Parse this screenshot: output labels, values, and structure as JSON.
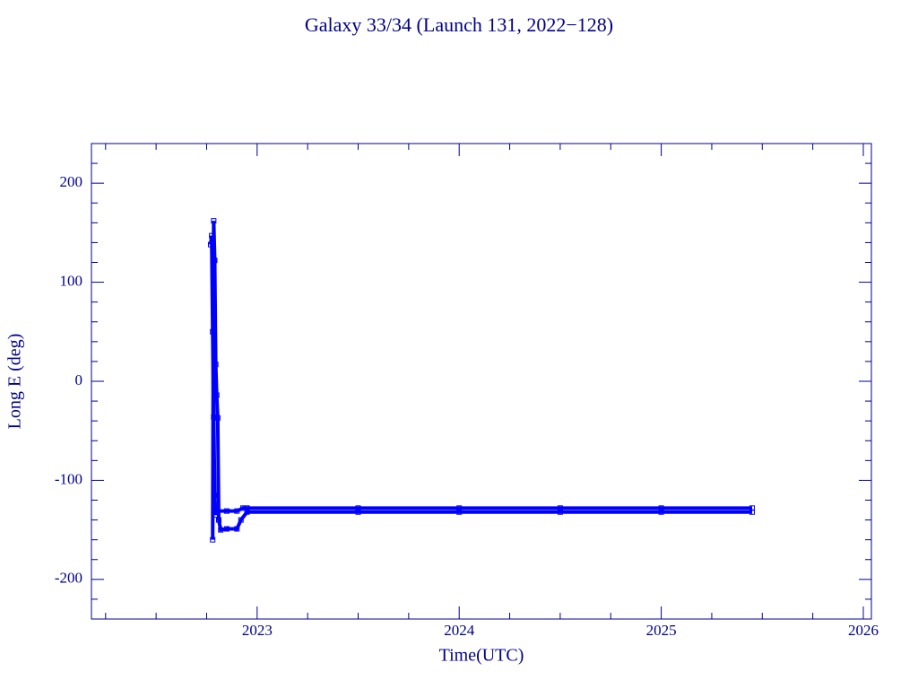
{
  "chart_data": {
    "type": "line",
    "title": "Galaxy 33/34 (Launch 131, 2022−128)",
    "x_label": "Time(UTC)",
    "y_label": "Long E (deg)",
    "xlim": [
      2022.18,
      2026.04
    ],
    "ylim": [
      -240,
      240
    ],
    "xticks": [
      2023,
      2024,
      2025,
      2026
    ],
    "yticks": [
      -200,
      -100,
      0,
      100,
      200
    ],
    "xminorticks": [
      2022.25,
      2022.5,
      2022.75,
      2023.25,
      2023.5,
      2023.75,
      2024.25,
      2024.5,
      2024.75,
      2025.25,
      2025.5,
      2025.75
    ],
    "yminorticks": [
      -220,
      -180,
      -160,
      -140,
      -120,
      -80,
      -60,
      -40,
      -20,
      20,
      40,
      60,
      80,
      120,
      140,
      160,
      180,
      220
    ],
    "axis_color": "#00008b",
    "series": [
      {
        "color": "#0000ff",
        "x": [
          2022.77,
          2022.775,
          2022.78,
          2022.785,
          2022.79,
          2022.795,
          2022.8,
          2022.85,
          2022.9,
          2022.93,
          2022.95,
          2023.5,
          2024.0,
          2024.5,
          2025.0,
          2025.45
        ],
        "values": [
          138,
          147,
          50,
          -36,
          -115,
          -135,
          -131,
          -131,
          -131,
          -128,
          -128,
          -128,
          -128,
          -128,
          -128,
          -128
        ]
      },
      {
        "color": "#0000ff",
        "x": [
          2022.78,
          2022.785,
          2022.79,
          2022.795,
          2022.8,
          2022.805,
          2022.81,
          2022.82,
          2022.85,
          2022.9,
          2022.92,
          2022.95,
          2023.5,
          2024.0,
          2024.5,
          2025.0,
          2025.45
        ],
        "values": [
          -160,
          162,
          122,
          17,
          -14,
          -37,
          -140,
          -150,
          -149,
          -149,
          -140,
          -132,
          -132,
          -132,
          -132,
          -132,
          -132
        ]
      }
    ]
  }
}
